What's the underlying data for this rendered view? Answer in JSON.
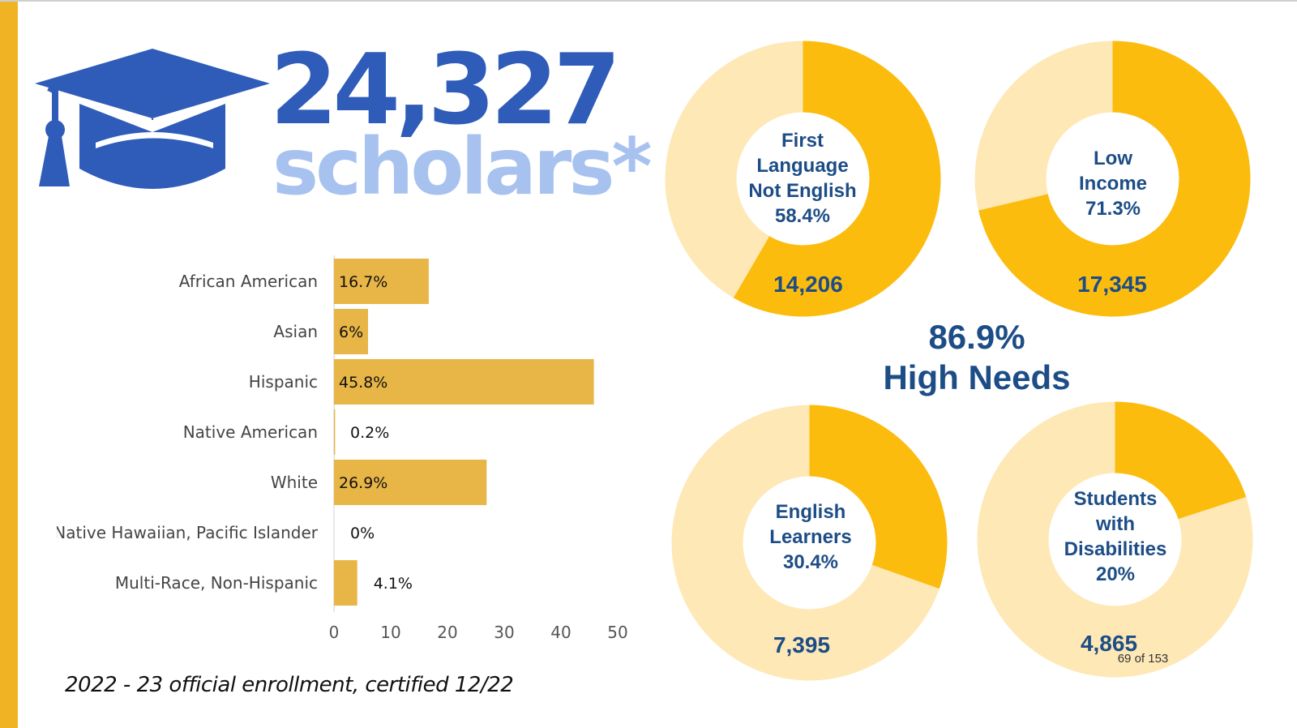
{
  "headline": {
    "count": "24,327",
    "count_word": "scholars*"
  },
  "chart_data": [
    {
      "type": "bar",
      "orientation": "horizontal",
      "categories": [
        "African American",
        "Asian",
        "Hispanic",
        "Native American",
        "White",
        "Native Hawaiian, Pacific Islander",
        "Multi-Race, Non-Hispanic"
      ],
      "values": [
        16.7,
        6,
        45.8,
        0.2,
        26.9,
        0,
        4.1
      ],
      "value_labels": [
        "16.7%",
        "6%",
        "45.8%",
        "0.2%",
        "26.9%",
        "0%",
        "4.1%"
      ],
      "xlim": [
        0,
        50
      ],
      "ticks": [
        0,
        10,
        20,
        30,
        40,
        50
      ],
      "color": "#e8b547",
      "grid": false
    },
    {
      "type": "pie",
      "donuts": [
        {
          "label_lines": [
            "First",
            "Language",
            "Not English",
            "58.4%"
          ],
          "percent": 58.4,
          "count": "14,206"
        },
        {
          "label_lines": [
            "Low",
            "Income",
            "71.3%"
          ],
          "percent": 71.3,
          "count": "17,345"
        },
        {
          "label_lines": [
            "English",
            "Learners",
            "30.4%"
          ],
          "percent": 30.4,
          "count": "7,395"
        },
        {
          "label_lines": [
            "Students",
            "with",
            "Disabilities",
            "20%"
          ],
          "percent": 20,
          "count": "4,865"
        }
      ],
      "fill_color": "#fbbc0e",
      "track_color": "#fee8b6"
    }
  ],
  "high_needs": {
    "percent": "86.9%",
    "label": "High Needs"
  },
  "footnote": "2022 - 23 official enrollment, certified 12/22",
  "page_indicator": "69 of 153",
  "colors": {
    "accent": "#f0b323",
    "headline_blue": "#2f5cb8",
    "headline_light": "#a8c2f0",
    "navy": "#1d4d86"
  }
}
